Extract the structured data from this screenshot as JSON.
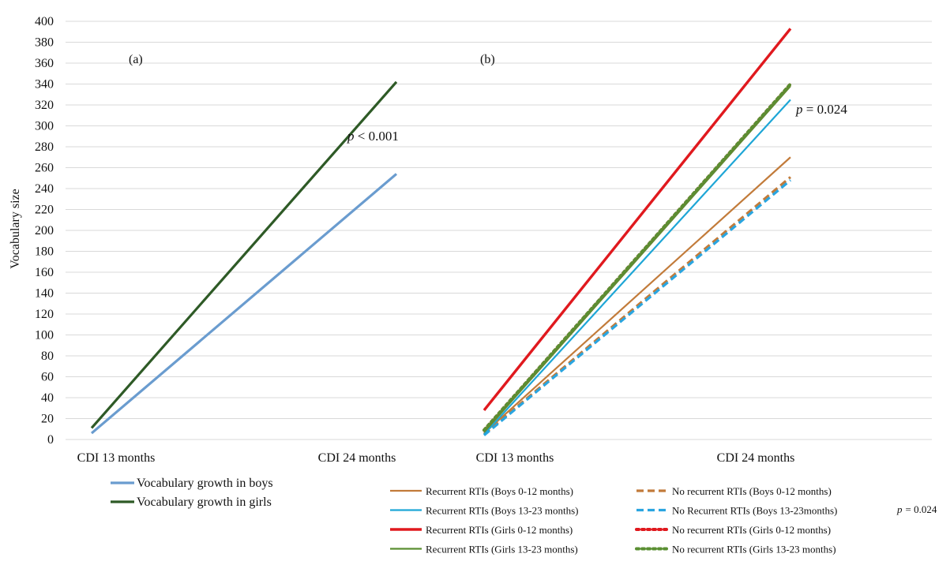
{
  "chart_data": {
    "type": "line",
    "ylabel": "Vocabulary size",
    "ylim": [
      0,
      400
    ],
    "yticks": [
      0,
      20,
      40,
      60,
      80,
      100,
      120,
      140,
      160,
      180,
      200,
      220,
      240,
      260,
      280,
      300,
      320,
      340,
      360,
      380,
      400
    ],
    "grid": true,
    "panels": [
      {
        "label": "(a)",
        "categories": [
          "CDI 13 months",
          "CDI 24 months"
        ],
        "p_value": {
          "prefix": "p",
          "rest": " < 0.001"
        },
        "legend": "bottom",
        "series": [
          {
            "name": "Vocabulary growth in boys",
            "values": [
              6,
              254
            ],
            "color": "#6a9ccf",
            "style": "solid"
          },
          {
            "name": "Vocabulary growth in girls",
            "values": [
              11,
              342
            ],
            "color": "#2e5a26",
            "style": "solid"
          }
        ]
      },
      {
        "label": "(b)",
        "categories": [
          "CDI 13 months",
          "CDI 24 months"
        ],
        "p_value": {
          "prefix": "p",
          "rest": " = 0.024"
        },
        "legend": "bottom",
        "legend_p_value": "= 0.024",
        "series": [
          {
            "name": "Recurrent RTIs (Boys 0-12 months)",
            "values": [
              6,
              270
            ],
            "color": "#c27b3a",
            "style": "solid"
          },
          {
            "name": "No recurrent RTIs (Boys 0-12 months)",
            "values": [
              5,
              251
            ],
            "color": "#c27b3a",
            "style": "dashed"
          },
          {
            "name": "Recurrent RTIs (Boys 13-23 months)",
            "values": [
              5,
              325
            ],
            "color": "#1ea6d6",
            "style": "solid"
          },
          {
            "name": "No Recurrent RTIs (Boys 13-23months)",
            "values": [
              4,
              248
            ],
            "color": "#2aa5e0",
            "style": "dashed"
          },
          {
            "name": "Recurrent RTIs (Girls 0-12 months)",
            "values": [
              28,
              393
            ],
            "color": "#e0191e",
            "style": "solid"
          },
          {
            "name": "No recurrent RTIs (Girls 0-12 months)",
            "values": [
              9,
              340
            ],
            "color": "#e0191e",
            "style": "dotted"
          },
          {
            "name": "Recurrent RTIs (Girls 13-23 months)",
            "values": [
              7,
              338
            ],
            "color": "#5a8f32",
            "style": "solid"
          },
          {
            "name": "No recurrent RTIs (Girls 13-23 months)",
            "values": [
              9,
              340
            ],
            "color": "#5a8f32",
            "style": "dotted"
          }
        ]
      }
    ]
  }
}
